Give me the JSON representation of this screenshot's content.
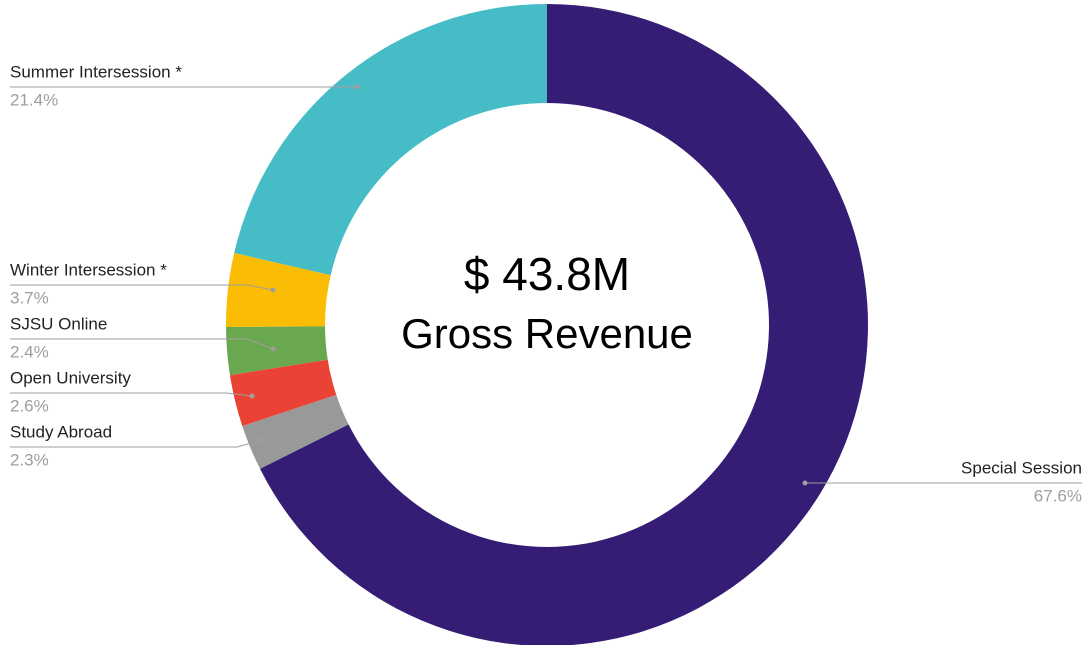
{
  "chart_data": {
    "type": "donut",
    "center_text": [
      "$ 43.8M",
      "Gross Revenue"
    ],
    "categories": [
      "Special Session",
      "Study Abroad",
      "Open University",
      "SJSU Online",
      "Winter Intersession *",
      "Summer Intersession *"
    ],
    "values": [
      67.6,
      2.3,
      2.6,
      2.4,
      3.7,
      21.4
    ],
    "value_labels": [
      "67.6%",
      "2.3%",
      "2.6%",
      "2.4%",
      "3.7%",
      "21.4%"
    ],
    "colors": [
      "#351c75",
      "#999999",
      "#ea4335",
      "#6aa84f",
      "#fbbc04",
      "#46bdc6"
    ]
  }
}
